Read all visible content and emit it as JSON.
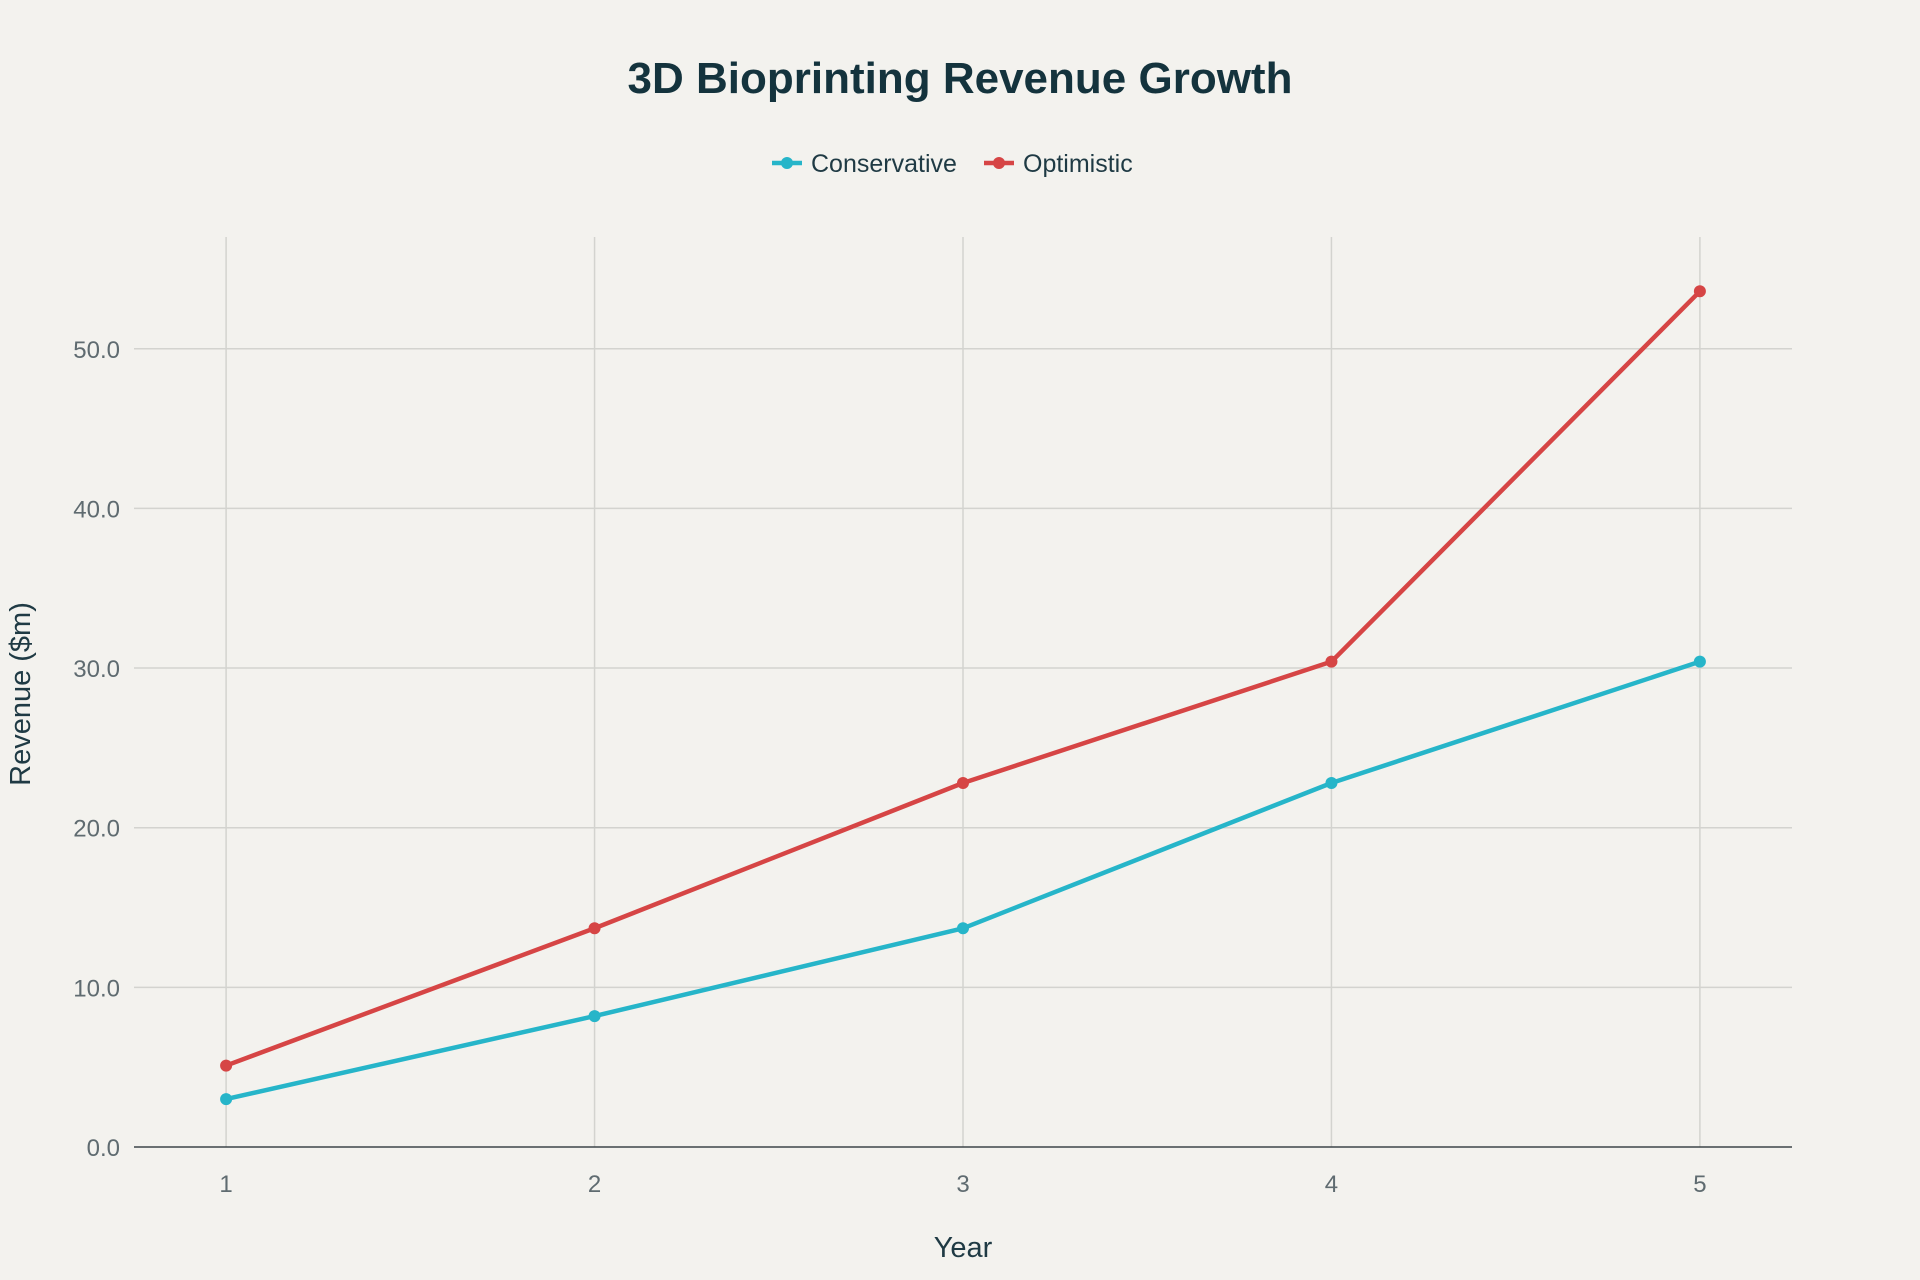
{
  "chart_data": {
    "type": "line",
    "title": "3D Bioprinting Revenue Growth",
    "xlabel": "Year",
    "ylabel": "Revenue ($m)",
    "x": [
      1,
      2,
      3,
      4,
      5
    ],
    "x_tick_labels": [
      "1",
      "2",
      "3",
      "4",
      "5"
    ],
    "xlim": [
      0.75,
      5.25
    ],
    "ylim": [
      0,
      57
    ],
    "y_ticks": [
      0,
      10,
      20,
      30,
      40,
      50
    ],
    "y_tick_labels": [
      "0.0",
      "10.0",
      "20.0",
      "30.0",
      "40.0",
      "50.0"
    ],
    "grid": true,
    "legend_position": "top-center",
    "series": [
      {
        "name": "Conservative",
        "color": "#26b5c9",
        "values": [
          3.0,
          8.2,
          13.7,
          22.8,
          30.4
        ]
      },
      {
        "name": "Optimistic",
        "color": "#d64545",
        "values": [
          5.1,
          13.7,
          22.8,
          30.4,
          53.6
        ]
      }
    ]
  }
}
